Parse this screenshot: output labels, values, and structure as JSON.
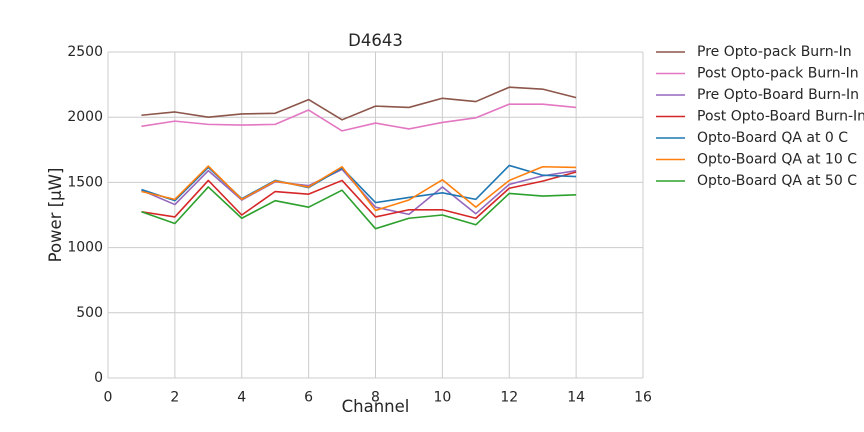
{
  "chart_data": {
    "type": "line",
    "title": "D4643",
    "xlabel": "Channel",
    "ylabel": "Power [μW]",
    "xlim": [
      0,
      16
    ],
    "ylim": [
      0,
      2500
    ],
    "xticks": [
      0,
      2,
      4,
      6,
      8,
      10,
      12,
      14,
      16
    ],
    "yticks": [
      0,
      500,
      1000,
      1500,
      2000,
      2500
    ],
    "grid": true,
    "legend_position": "outside-right",
    "x": [
      1,
      2,
      3,
      4,
      5,
      6,
      7,
      8,
      9,
      10,
      11,
      12,
      13,
      14
    ],
    "series": [
      {
        "name": "Pre Opto-pack Burn-In",
        "color": "#8c564b",
        "values": [
          2015,
          2040,
          2000,
          2025,
          2030,
          2135,
          1980,
          2085,
          2075,
          2145,
          2120,
          2230,
          2215,
          2150
        ]
      },
      {
        "name": "Post Opto-pack Burn-In",
        "color": "#e377c2",
        "values": [
          1930,
          1970,
          1945,
          1940,
          1945,
          2055,
          1895,
          1955,
          1910,
          1960,
          1995,
          2100,
          2100,
          2075
        ]
      },
      {
        "name": "Pre Opto-Board Burn-In",
        "color": "#9467bd",
        "values": [
          1440,
          1330,
          1590,
          1365,
          1505,
          1475,
          1600,
          1310,
          1255,
          1465,
          1260,
          1485,
          1550,
          1590
        ]
      },
      {
        "name": "Post Opto-Board Burn-In",
        "color": "#d62728",
        "values": [
          1275,
          1235,
          1515,
          1250,
          1430,
          1410,
          1515,
          1235,
          1290,
          1290,
          1225,
          1455,
          1510,
          1580
        ]
      },
      {
        "name": "Opto-Board QA at 0 C",
        "color": "#1f77b4",
        "values": [
          1445,
          1360,
          1615,
          1375,
          1515,
          1460,
          1610,
          1345,
          1385,
          1420,
          1370,
          1630,
          1555,
          1545
        ]
      },
      {
        "name": "Opto-Board QA at 10 C",
        "color": "#ff7f0e",
        "values": [
          1430,
          1370,
          1625,
          1370,
          1510,
          1465,
          1620,
          1285,
          1365,
          1520,
          1310,
          1515,
          1620,
          1615
        ]
      },
      {
        "name": "Opto-Board QA at 50 C",
        "color": "#2ca02c",
        "values": [
          1275,
          1185,
          1465,
          1225,
          1360,
          1310,
          1440,
          1145,
          1225,
          1250,
          1175,
          1415,
          1395,
          1405
        ]
      }
    ]
  }
}
